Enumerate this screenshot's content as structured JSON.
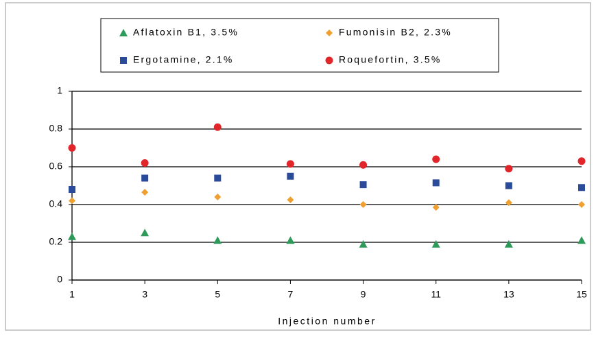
{
  "chart_data": {
    "type": "scatter",
    "x_label": "Injection number",
    "x": [
      1,
      3,
      5,
      7,
      9,
      11,
      13,
      15
    ],
    "xlim": [
      1,
      15
    ],
    "xticks": [
      1,
      3,
      5,
      7,
      9,
      11,
      13,
      15
    ],
    "ylim": [
      0,
      1
    ],
    "yticks": [
      0,
      0.2,
      0.4,
      0.6,
      0.8,
      1
    ],
    "grid": true,
    "legend": "top",
    "series": [
      {
        "name": "Aflatoxin B1, 3.5%",
        "color": "#2e9a5a",
        "marker": "triangle",
        "values": [
          0.23,
          0.25,
          0.21,
          0.21,
          0.19,
          0.19,
          0.19,
          0.21
        ]
      },
      {
        "name": "Fumonisin B2, 2.3%",
        "color": "#f0a030",
        "marker": "diamond",
        "values": [
          0.42,
          0.465,
          0.44,
          0.425,
          0.4,
          0.385,
          0.41,
          0.4
        ]
      },
      {
        "name": "Ergotamine, 2.1%",
        "color": "#2a4a9a",
        "marker": "square",
        "values": [
          0.48,
          0.54,
          0.54,
          0.55,
          0.505,
          0.515,
          0.5,
          0.49
        ]
      },
      {
        "name": "Roquefortin, 3.5%",
        "color": "#e0262a",
        "marker": "circle",
        "values": [
          0.7,
          0.62,
          0.81,
          0.615,
          0.61,
          0.64,
          0.59,
          0.63
        ]
      }
    ]
  }
}
